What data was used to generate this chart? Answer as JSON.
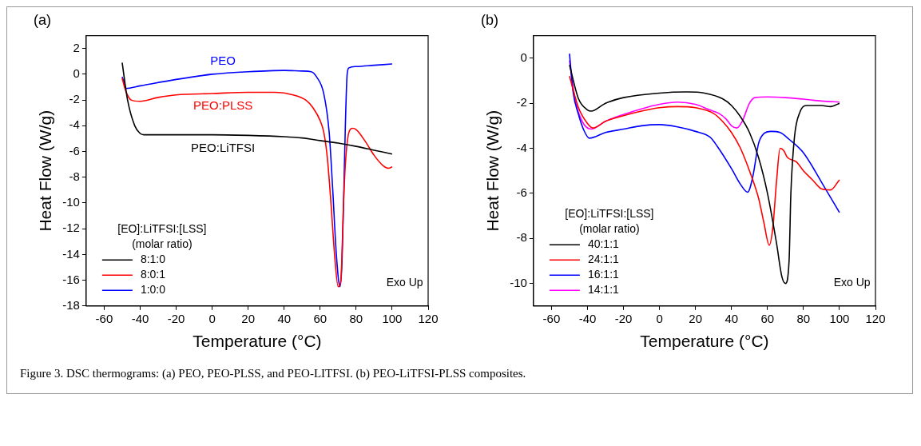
{
  "chart_data": [
    {
      "type": "line",
      "title": "(a)",
      "xlabel": "Temperature (°C)",
      "ylabel": "Heat Flow (W/g)",
      "legend_title": "[EO]:LiTFSI:[LSS] (molar ratio)",
      "legend": "bottom left",
      "marker": "none",
      "line_style": "solid",
      "xlim": [
        -70,
        120
      ],
      "xticks": [
        -60,
        -40,
        -20,
        0,
        20,
        40,
        60,
        80,
        100,
        120
      ],
      "ylim": [
        -18,
        3
      ],
      "yticks": [
        2,
        0,
        -2,
        -4,
        -6,
        -8,
        -10,
        -12,
        -14,
        -16,
        -18
      ],
      "series": [
        {
          "name": "8:1:0",
          "color": "#000000",
          "x": [
            -50,
            -47,
            -43,
            -40,
            -38,
            0,
            20,
            40,
            50,
            60,
            70,
            80,
            90,
            100
          ],
          "values": [
            0.9,
            -2,
            -4,
            -4.6,
            -4.7,
            -4.7,
            -4.75,
            -4.85,
            -4.95,
            -5.15,
            -5.35,
            -5.6,
            -5.9,
            -6.2
          ]
        },
        {
          "name": "8:0:1",
          "color": "#ff0000",
          "x": [
            -50,
            -48,
            -45,
            -40,
            -30,
            -20,
            0,
            20,
            35,
            45,
            52,
            56,
            60,
            62,
            64,
            66,
            68,
            70,
            71.5,
            73,
            74,
            76,
            78,
            80,
            85,
            90,
            95,
            98,
            100
          ],
          "values": [
            -0.3,
            -1.3,
            -2,
            -2.1,
            -1.8,
            -1.6,
            -1.5,
            -1.4,
            -1.4,
            -1.6,
            -2,
            -2.6,
            -3.6,
            -4.5,
            -6.5,
            -10,
            -14,
            -16.5,
            -16,
            -10,
            -7,
            -4.5,
            -4.2,
            -4.3,
            -5.2,
            -6.3,
            -7.1,
            -7.3,
            -7.2
          ]
        },
        {
          "name": "1:0:0",
          "color": "#0000ff",
          "x": [
            -50,
            -49,
            -48,
            -40,
            -20,
            0,
            20,
            40,
            50,
            55,
            58,
            62,
            65,
            67,
            69,
            71,
            72,
            73,
            74,
            75,
            76,
            80,
            90,
            100
          ],
          "values": [
            -0.2,
            -0.6,
            -1.1,
            -0.9,
            -0.4,
            0,
            0.2,
            0.3,
            0.25,
            0.2,
            -0.2,
            -1.5,
            -4.5,
            -9,
            -14,
            -16.5,
            -15,
            -10,
            -4,
            0,
            0.5,
            0.6,
            0.7,
            0.8
          ]
        }
      ],
      "annotations": [
        "PEO",
        "PEO:PLSS",
        "PEO:LiTFSI",
        "Exo Up",
        "Figure 3. DSC thermograms: (a) PEO, PEO-PLSS, and PEO-LITFSI. (b) PEO-LiTFSI-PLSS composites."
      ]
    },
    {
      "type": "line",
      "title": "(b)",
      "xlabel": "Temperature (°C)",
      "ylabel": "Heat Flow (W/g)",
      "legend_title": "[EO]:LiTFSI:[LSS] (molar ratio)",
      "legend": "bottom left",
      "marker": "none",
      "line_style": "solid",
      "xlim": [
        -70,
        120
      ],
      "xticks": [
        -60,
        -40,
        -20,
        0,
        20,
        40,
        60,
        80,
        100,
        120
      ],
      "ylim": [
        -11,
        1
      ],
      "yticks": [
        0,
        -2,
        -4,
        -6,
        -8,
        -10
      ],
      "series": [
        {
          "name": "40:1:1",
          "color": "#000000",
          "x": [
            -50,
            -45,
            -40,
            -38,
            -30,
            -20,
            0,
            15,
            25,
            35,
            40,
            45,
            50,
            55,
            60,
            65,
            68,
            70,
            72,
            73,
            75,
            78,
            82,
            90,
            95,
            100
          ],
          "values": [
            -0.3,
            -1.8,
            -2.3,
            -2.35,
            -2,
            -1.75,
            -1.55,
            -1.5,
            -1.55,
            -1.8,
            -2.1,
            -2.6,
            -3.3,
            -4.4,
            -6,
            -8.2,
            -9.7,
            -10,
            -9,
            -6,
            -3.5,
            -2.4,
            -2.1,
            -2.1,
            -2.15,
            -2
          ]
        },
        {
          "name": "24:1:1",
          "color": "#ff0000",
          "x": [
            -50,
            -45,
            -40,
            -37,
            -30,
            -20,
            -10,
            0,
            10,
            20,
            30,
            35,
            40,
            45,
            50,
            55,
            58,
            61,
            63,
            65,
            67,
            69,
            71,
            76,
            80,
            85,
            90,
            95,
            100
          ],
          "values": [
            -0.8,
            -2.2,
            -2.9,
            -3.1,
            -2.8,
            -2.55,
            -2.35,
            -2.2,
            -2.15,
            -2.2,
            -2.45,
            -2.8,
            -3.3,
            -4,
            -5,
            -6.2,
            -7.3,
            -8.3,
            -7.5,
            -5.5,
            -4,
            -4.1,
            -4.4,
            -4.6,
            -5,
            -5.4,
            -5.8,
            -5.85,
            -5.4
          ]
        },
        {
          "name": "16:1:1",
          "color": "#0000ff",
          "x": [
            -50,
            -48,
            -45,
            -42,
            -39,
            -30,
            -20,
            -10,
            0,
            10,
            20,
            28,
            32,
            40,
            45,
            49,
            52,
            55,
            58,
            62,
            67,
            72,
            80,
            90,
            100
          ],
          "values": [
            0.2,
            -1.5,
            -2.5,
            -3.2,
            -3.55,
            -3.3,
            -3.15,
            -3,
            -2.95,
            -3.05,
            -3.25,
            -3.5,
            -3.9,
            -4.9,
            -5.6,
            -5.95,
            -5.2,
            -3.8,
            -3.35,
            -3.25,
            -3.3,
            -3.6,
            -4.2,
            -5.5,
            -6.85
          ]
        },
        {
          "name": "14:1:1",
          "color": "#ff00ff",
          "x": [
            -50,
            -47,
            -43,
            -38,
            -30,
            -20,
            -10,
            0,
            10,
            20,
            28,
            33,
            37,
            40,
            43,
            46,
            50,
            53,
            60,
            70,
            80,
            90,
            100
          ],
          "values": [
            -0.1,
            -1.8,
            -2.8,
            -3.15,
            -2.8,
            -2.5,
            -2.25,
            -2.05,
            -1.95,
            -2.05,
            -2.3,
            -2.45,
            -2.7,
            -3,
            -3.1,
            -2.8,
            -2,
            -1.75,
            -1.72,
            -1.75,
            -1.82,
            -1.9,
            -1.95
          ]
        }
      ],
      "annotations": [
        "Exo Up"
      ]
    }
  ]
}
